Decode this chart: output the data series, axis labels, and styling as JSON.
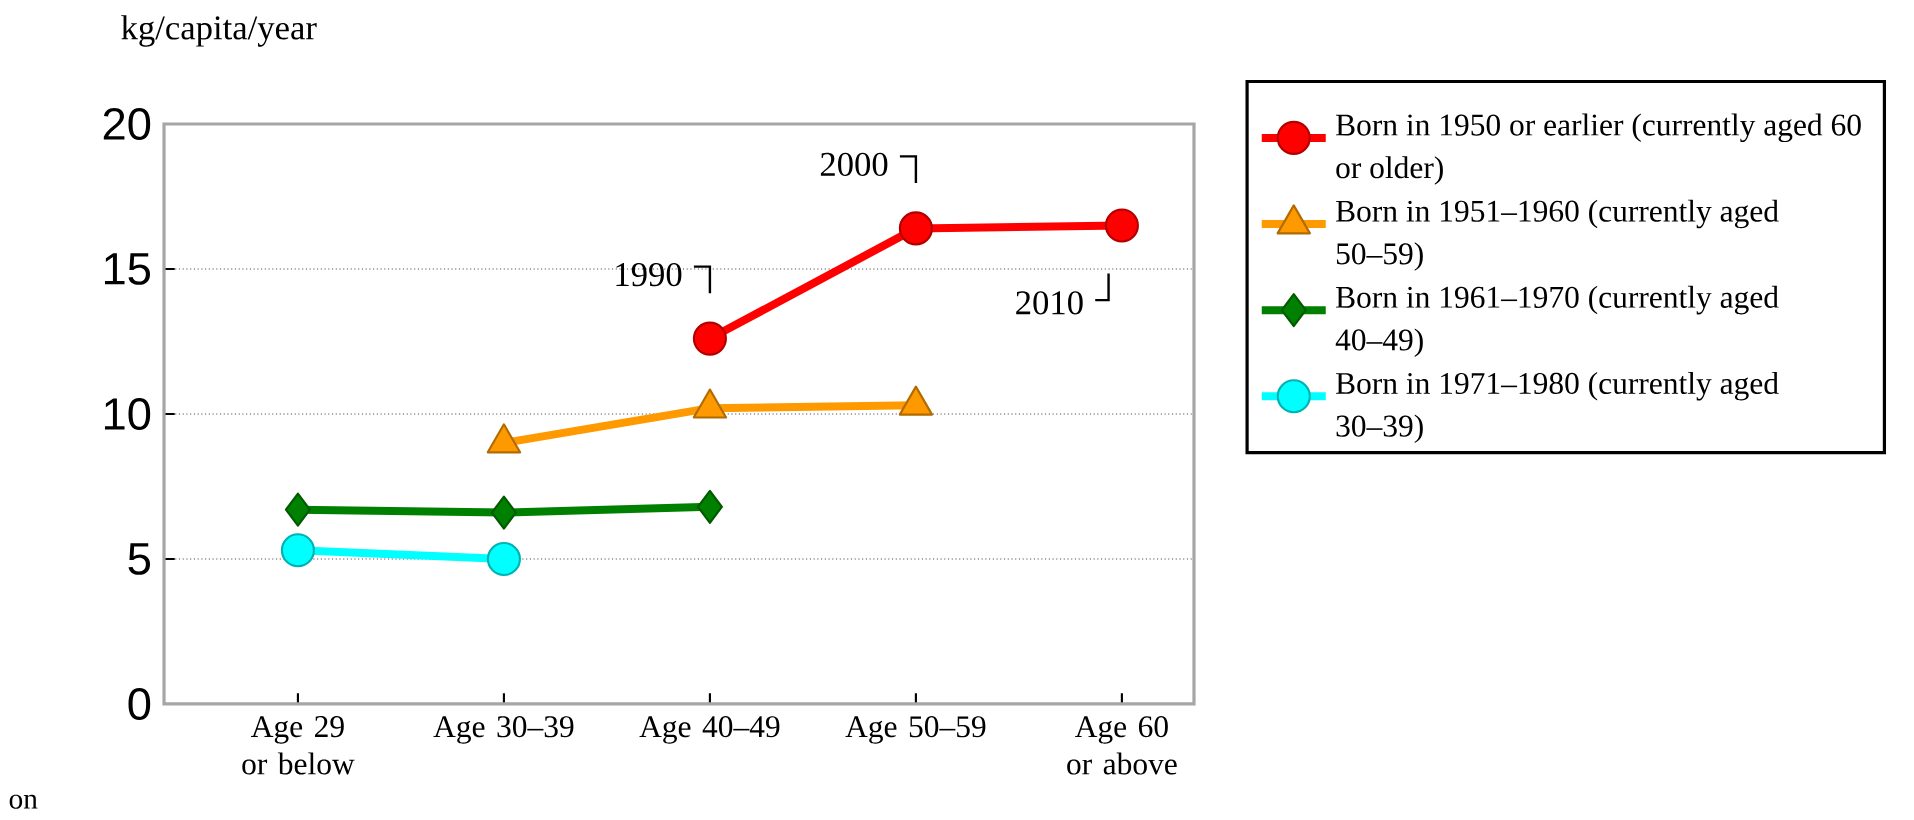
{
  "chart_data": {
    "type": "line",
    "ylabel": "kg/capita/year",
    "categories": [
      "Age 29 or below",
      "Age 30–39",
      "Age 40–49",
      "Age 50–59",
      "Age 60 or above"
    ],
    "series": [
      {
        "name": "Born in 1950 or earlier (currently aged 60 or older)",
        "color": "#ff0000",
        "marker": "circle",
        "values": [
          null,
          null,
          12.6,
          16.4,
          16.5
        ]
      },
      {
        "name": "Born in 1951–1960 (currently aged 50–59)",
        "color": "#ff9900",
        "marker": "triangle",
        "values": [
          null,
          9.0,
          10.2,
          10.3,
          null
        ]
      },
      {
        "name": "Born in 1961–1970 (currently aged 40–49)",
        "color": "#008000",
        "marker": "diamond",
        "values": [
          6.7,
          6.6,
          6.8,
          null,
          null
        ]
      },
      {
        "name": "Born in 1971–1980 (currently aged 30–39)",
        "color": "#00ffff",
        "marker": "circle",
        "values": [
          5.3,
          5.0,
          null,
          null,
          null
        ]
      }
    ],
    "ylim": [
      0,
      20
    ],
    "yticks": [
      0,
      5,
      10,
      15,
      20
    ],
    "grid": "y",
    "legend": "right",
    "annotations": [
      {
        "text": "1990",
        "x": "Age 40–49",
        "y": 12.6
      },
      {
        "text": "2000",
        "x": "Age 50–59",
        "y": 16.4
      },
      {
        "text": "2010",
        "x": "Age 60 or above",
        "y": 16.5
      },
      "on"
    ]
  }
}
